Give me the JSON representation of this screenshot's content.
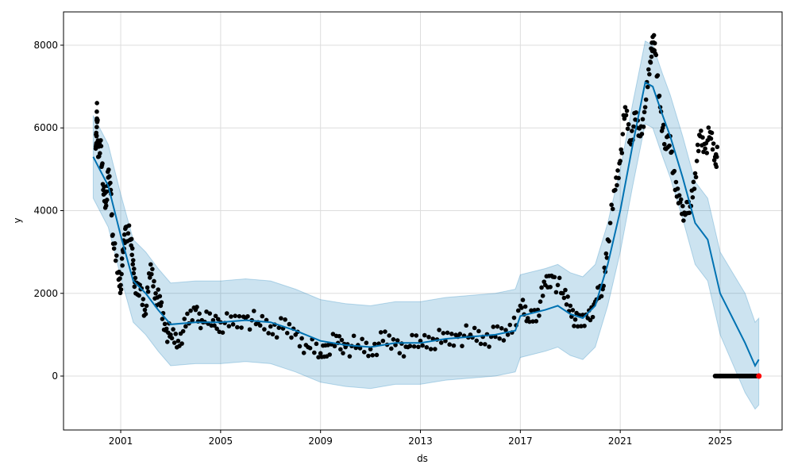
{
  "chart_data": {
    "type": "line",
    "title": "",
    "xlabel": "ds",
    "ylabel": "y",
    "xlim": [
      1998.71,
      2027.48
    ],
    "ylim": [
      -1304,
      8805
    ],
    "grid": true,
    "x_ticks": [
      2001,
      2005,
      2009,
      2013,
      2017,
      2021,
      2025
    ],
    "x_tick_labels": [
      "2001",
      "2005",
      "2009",
      "2013",
      "2017",
      "2021",
      "2025"
    ],
    "y_ticks": [
      0,
      2000,
      4000,
      6000,
      8000
    ],
    "y_tick_labels": [
      "0",
      "2000",
      "4000",
      "6000",
      "8000"
    ],
    "colors": {
      "forecast": "#0072B2",
      "band": "#0072B2",
      "actual": "#000000",
      "highlight": "#ff0000"
    },
    "forecast": {
      "x": [
        1999.9,
        2000.5,
        2001.0,
        2001.5,
        2002.0,
        2002.5,
        2003.0,
        2004.0,
        2005.0,
        2006.0,
        2007.0,
        2008.0,
        2009.0,
        2010.0,
        2011.0,
        2012.0,
        2013.0,
        2014.0,
        2015.0,
        2016.0,
        2016.8,
        2017.0,
        2018.0,
        2018.5,
        2019.0,
        2019.5,
        2020.0,
        2020.5,
        2021.0,
        2021.5,
        2022.0,
        2022.3,
        2022.7,
        2023.0,
        2023.5,
        2024.0,
        2024.5,
        2025.0,
        2025.5,
        2026.0,
        2026.4,
        2026.55
      ],
      "yhat": [
        5300,
        4600,
        3400,
        2300,
        2000,
        1600,
        1250,
        1300,
        1300,
        1350,
        1300,
        1100,
        850,
        750,
        700,
        800,
        800,
        900,
        950,
        1000,
        1100,
        1450,
        1600,
        1700,
        1500,
        1400,
        1700,
        2700,
        4000,
        5600,
        7100,
        7000,
        6300,
        5800,
        4800,
        3700,
        3300,
        2000,
        1400,
        800,
        250,
        400
      ],
      "lower": [
        4300,
        3600,
        2400,
        1300,
        1000,
        600,
        250,
        300,
        300,
        350,
        300,
        100,
        -150,
        -250,
        -300,
        -200,
        -200,
        -100,
        -50,
        0,
        100,
        450,
        600,
        700,
        500,
        400,
        700,
        1700,
        3000,
        4600,
        6100,
        6000,
        5300,
        4800,
        3800,
        2700,
        2300,
        1000,
        300,
        -400,
        -800,
        -700
      ],
      "upper": [
        6300,
        5600,
        4400,
        3300,
        3000,
        2600,
        2250,
        2300,
        2300,
        2350,
        2300,
        2100,
        1850,
        1750,
        1700,
        1800,
        1800,
        1900,
        1950,
        2000,
        2100,
        2450,
        2600,
        2700,
        2500,
        2400,
        2700,
        3700,
        5000,
        6600,
        8100,
        8000,
        7300,
        6800,
        5800,
        4700,
        4300,
        3000,
        2500,
        2000,
        1300,
        1400
      ]
    },
    "actual": {
      "x": [
        2000.0,
        2000.03,
        2000.05,
        2000.1,
        2000.2,
        2000.3,
        2000.4,
        2000.5,
        2000.6,
        2000.7,
        2000.9,
        2001.0,
        2001.1,
        2001.2,
        2001.4,
        2001.5,
        2001.6,
        2001.8,
        2002.0,
        2002.2,
        2002.4,
        2002.6,
        2002.8,
        2003.0,
        2003.3,
        2003.6,
        2004.0,
        2004.3,
        2004.7,
        2005.0,
        2005.5,
        2006.0,
        2006.5,
        2007.0,
        2007.5,
        2008.0,
        2008.5,
        2009.0,
        2009.3,
        2009.7,
        2010.0,
        2010.5,
        2011.0,
        2011.5,
        2012.0,
        2012.5,
        2013.0,
        2013.5,
        2014.0,
        2014.5,
        2015.0,
        2015.5,
        2016.0,
        2016.5,
        2017.0,
        2017.3,
        2017.7,
        2018.0,
        2018.3,
        2018.7,
        2019.0,
        2019.3,
        2019.7,
        2020.0,
        2020.3,
        2020.5,
        2020.8,
        2021.0,
        2021.2,
        2021.4,
        2021.6,
        2021.8,
        2022.0,
        2022.2,
        2022.3,
        2022.4,
        2022.6,
        2022.8,
        2023.0,
        2023.2,
        2023.4,
        2023.6,
        2023.8,
        2024.0,
        2024.2,
        2024.4,
        2024.6,
        2024.8
      ],
      "y": [
        5500,
        5800,
        6600,
        5300,
        5700,
        4500,
        4200,
        4800,
        4500,
        3200,
        2500,
        2200,
        3000,
        3600,
        3300,
        2800,
        2000,
        2100,
        1500,
        2700,
        2000,
        1700,
        1100,
        1000,
        850,
        1200,
        1600,
        1300,
        1350,
        1300,
        1250,
        1400,
        1300,
        1200,
        1150,
        1000,
        700,
        550,
        750,
        800,
        700,
        750,
        650,
        850,
        750,
        700,
        850,
        900,
        850,
        950,
        1000,
        950,
        950,
        1000,
        1700,
        1400,
        1600,
        2200,
        2400,
        2000,
        1700,
        1200,
        1400,
        1800,
        2100,
        3300,
        4500,
        5200,
        6500,
        5700,
        6200,
        5800,
        6500,
        7600,
        8200,
        7800,
        6500,
        5500,
        5800,
        4500,
        4200,
        3900,
        4100,
        4900,
        5800,
        5500,
        5900,
        5300
      ]
    },
    "future_zero": {
      "x_start": 2024.8,
      "x_end": 2026.45,
      "y": 0
    },
    "highlight_point": {
      "x": 2026.55,
      "y": 0
    }
  }
}
